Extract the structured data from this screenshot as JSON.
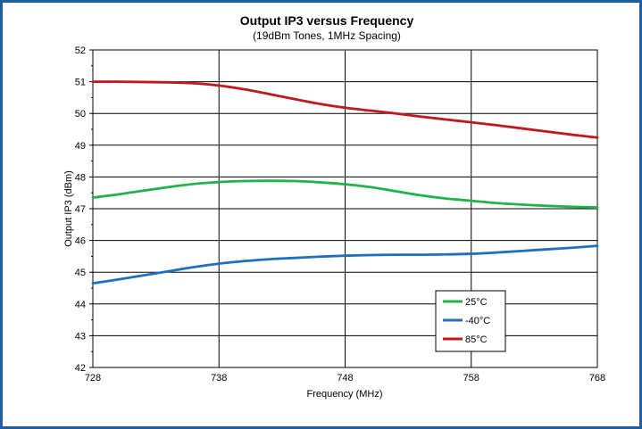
{
  "chart_data": {
    "type": "line",
    "title": "Output IP3 versus Frequency",
    "subtitle": "(19dBm Tones, 1MHz Spacing)",
    "xlabel": "Frequency (MHz)",
    "ylabel": "Output IP3 (dBm)",
    "xlim": [
      728,
      768
    ],
    "ylim": [
      42,
      52
    ],
    "x_ticks": [
      "728",
      "738",
      "748",
      "758",
      "768"
    ],
    "y_ticks": [
      "42",
      "43",
      "44",
      "45",
      "46",
      "47",
      "48",
      "49",
      "50",
      "51",
      "52"
    ],
    "grid": true,
    "legend_position": "bottom-right",
    "series": [
      {
        "name": "25°C",
        "color": "#22b24c",
        "x": [
          728,
          730,
          732,
          734,
          736,
          738,
          740,
          742,
          744,
          746,
          748,
          750,
          752,
          754,
          756,
          758,
          760,
          762,
          764,
          766,
          768
        ],
        "y": [
          47.35,
          47.45,
          47.57,
          47.68,
          47.78,
          47.84,
          47.87,
          47.88,
          47.87,
          47.83,
          47.77,
          47.68,
          47.55,
          47.42,
          47.32,
          47.25,
          47.18,
          47.13,
          47.09,
          47.06,
          47.04
        ]
      },
      {
        "name": "-40°C",
        "color": "#1f6fbf",
        "x": [
          728,
          730,
          732,
          734,
          736,
          738,
          740,
          742,
          744,
          746,
          748,
          750,
          752,
          754,
          756,
          758,
          760,
          762,
          764,
          766,
          768
        ],
        "y": [
          44.65,
          44.77,
          44.9,
          45.03,
          45.16,
          45.27,
          45.35,
          45.41,
          45.45,
          45.49,
          45.52,
          45.54,
          45.55,
          45.55,
          45.56,
          45.58,
          45.62,
          45.67,
          45.72,
          45.77,
          45.83
        ]
      },
      {
        "name": "85°C",
        "color": "#c0181f",
        "x": [
          728,
          730,
          732,
          734,
          736,
          738,
          740,
          742,
          744,
          746,
          748,
          750,
          752,
          754,
          756,
          758,
          760,
          762,
          764,
          766,
          768
        ],
        "y": [
          51.0,
          51.0,
          50.99,
          50.98,
          50.95,
          50.88,
          50.76,
          50.61,
          50.45,
          50.3,
          50.18,
          50.09,
          50.0,
          49.9,
          49.81,
          49.72,
          49.63,
          49.53,
          49.43,
          49.33,
          49.24
        ]
      }
    ]
  }
}
